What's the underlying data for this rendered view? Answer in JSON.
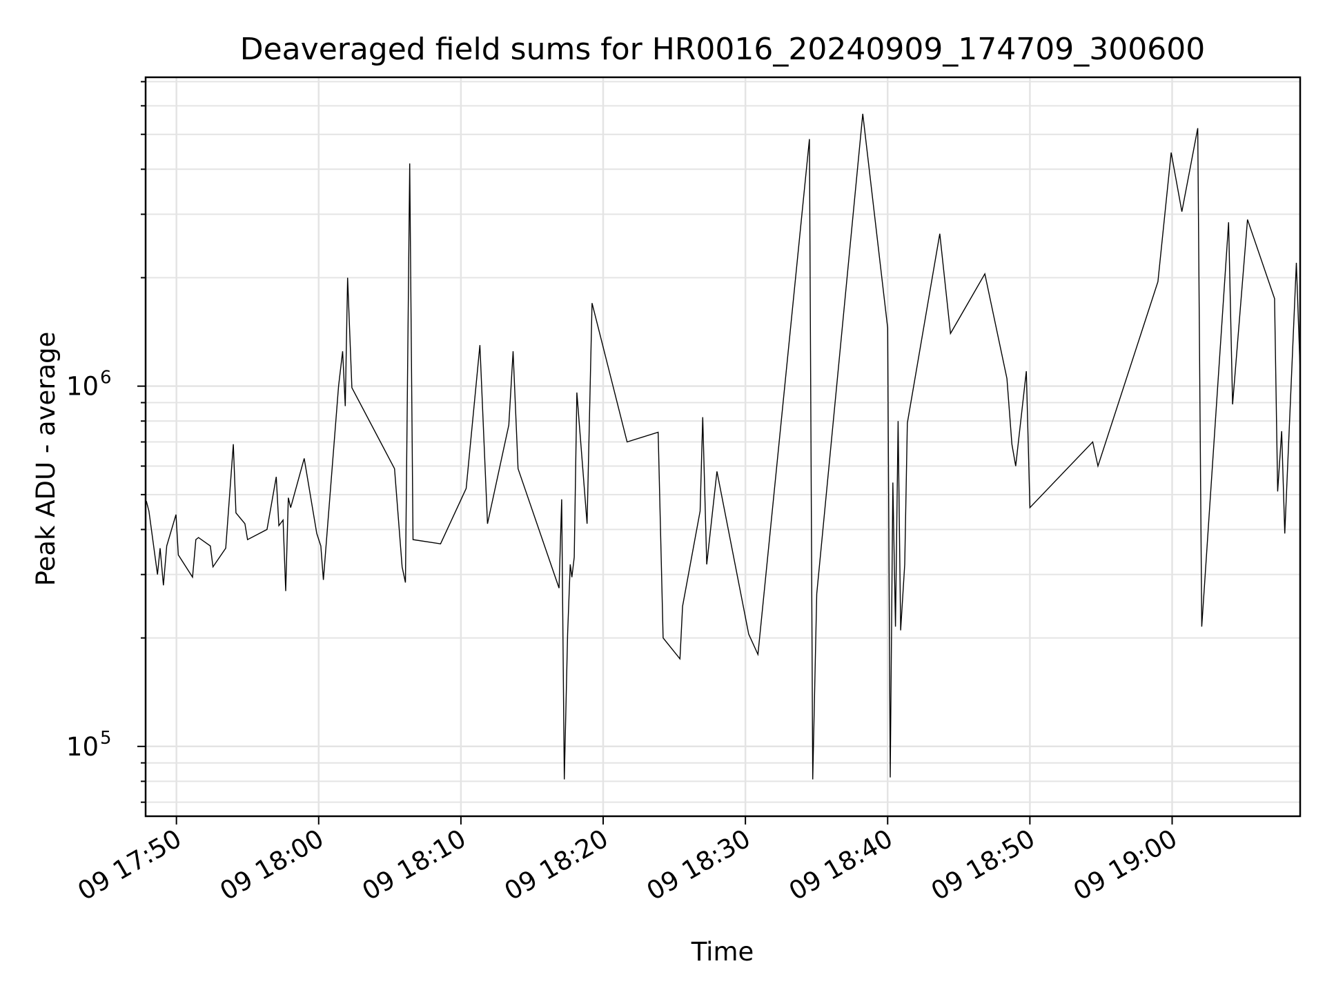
{
  "chart_data": {
    "type": "line",
    "title": "Deaveraged field sums for HR0016_20240909_174709_300600",
    "xlabel": "Time",
    "ylabel": "Peak ADU - average",
    "y_scale": "log",
    "ylim": [
      64000,
      7200000
    ],
    "xlim": [
      "2024-09-09 17:47:50",
      "2024-09-09 19:09:00"
    ],
    "grid": true,
    "x_ticks": [
      {
        "label": "09 17:50",
        "value": "2024-09-09 17:50:00"
      },
      {
        "label": "09 18:00",
        "value": "2024-09-09 18:00:00"
      },
      {
        "label": "09 18:10",
        "value": "2024-09-09 18:10:00"
      },
      {
        "label": "09 18:20",
        "value": "2024-09-09 18:20:00"
      },
      {
        "label": "09 18:30",
        "value": "2024-09-09 18:30:00"
      },
      {
        "label": "09 18:40",
        "value": "2024-09-09 18:40:00"
      },
      {
        "label": "09 18:50",
        "value": "2024-09-09 18:50:00"
      },
      {
        "label": "09 19:00",
        "value": "2024-09-09 19:00:00"
      }
    ],
    "y_ticks": [
      {
        "base": "10",
        "exp": "5",
        "value": 100000
      },
      {
        "base": "10",
        "exp": "6",
        "value": 1000000
      }
    ],
    "series": [
      {
        "color": "#000000",
        "points": [
          [
            "2024-09-09 17:47:53",
            480000
          ],
          [
            "2024-09-09 17:48:04",
            450000
          ],
          [
            "2024-09-09 17:48:40",
            300000
          ],
          [
            "2024-09-09 17:48:51",
            355000
          ],
          [
            "2024-09-09 17:49:05",
            280000
          ],
          [
            "2024-09-09 17:49:19",
            360000
          ],
          [
            "2024-09-09 17:49:58",
            440000
          ],
          [
            "2024-09-09 17:50:08",
            340000
          ],
          [
            "2024-09-09 17:51:08",
            295000
          ],
          [
            "2024-09-09 17:51:22",
            375000
          ],
          [
            "2024-09-09 17:51:33",
            380000
          ],
          [
            "2024-09-09 17:52:23",
            360000
          ],
          [
            "2024-09-09 17:52:34",
            315000
          ],
          [
            "2024-09-09 17:53:28",
            355000
          ],
          [
            "2024-09-09 17:54:00",
            690000
          ],
          [
            "2024-09-09 17:54:11",
            445000
          ],
          [
            "2024-09-09 17:54:49",
            415000
          ],
          [
            "2024-09-09 17:55:00",
            375000
          ],
          [
            "2024-09-09 17:56:22",
            400000
          ],
          [
            "2024-09-09 17:57:01",
            560000
          ],
          [
            "2024-09-09 17:57:12",
            410000
          ],
          [
            "2024-09-09 17:57:30",
            425000
          ],
          [
            "2024-09-09 17:57:41",
            270000
          ],
          [
            "2024-09-09 17:57:52",
            490000
          ],
          [
            "2024-09-09 17:58:02",
            460000
          ],
          [
            "2024-09-09 17:58:59",
            630000
          ],
          [
            "2024-09-09 17:59:52",
            390000
          ],
          [
            "2024-09-09 18:00:09",
            360000
          ],
          [
            "2024-09-09 18:00:20",
            290000
          ],
          [
            "2024-09-09 18:01:24",
            1000000
          ],
          [
            "2024-09-09 18:01:41",
            1250000
          ],
          [
            "2024-09-09 18:01:52",
            880000
          ],
          [
            "2024-09-09 18:02:02",
            2000000
          ],
          [
            "2024-09-09 18:02:20",
            990000
          ],
          [
            "2024-09-09 18:05:20",
            590000
          ],
          [
            "2024-09-09 18:05:52",
            315000
          ],
          [
            "2024-09-09 18:06:06",
            285000
          ],
          [
            "2024-09-09 18:06:24",
            4150000
          ],
          [
            "2024-09-09 18:06:38",
            375000
          ],
          [
            "2024-09-09 18:08:34",
            365000
          ],
          [
            "2024-09-09 18:10:22",
            520000
          ],
          [
            "2024-09-09 18:11:20",
            1300000
          ],
          [
            "2024-09-09 18:11:52",
            415000
          ],
          [
            "2024-09-09 18:13:22",
            780000
          ],
          [
            "2024-09-09 18:13:40",
            1250000
          ],
          [
            "2024-09-09 18:14:01",
            590000
          ],
          [
            "2024-09-09 18:16:54",
            275000
          ],
          [
            "2024-09-09 18:17:05",
            485000
          ],
          [
            "2024-09-09 18:17:16",
            81000
          ],
          [
            "2024-09-09 18:17:30",
            205000
          ],
          [
            "2024-09-09 18:17:41",
            320000
          ],
          [
            "2024-09-09 18:17:48",
            295000
          ],
          [
            "2024-09-09 18:17:58",
            335000
          ],
          [
            "2024-09-09 18:18:09",
            960000
          ],
          [
            "2024-09-09 18:18:52",
            415000
          ],
          [
            "2024-09-09 18:19:13",
            1700000
          ],
          [
            "2024-09-09 18:21:41",
            700000
          ],
          [
            "2024-09-09 18:23:52",
            745000
          ],
          [
            "2024-09-09 18:24:13",
            200000
          ],
          [
            "2024-09-09 18:25:24",
            175000
          ],
          [
            "2024-09-09 18:25:35",
            245000
          ],
          [
            "2024-09-09 18:26:49",
            450000
          ],
          [
            "2024-09-09 18:27:00",
            820000
          ],
          [
            "2024-09-09 18:27:17",
            320000
          ],
          [
            "2024-09-09 18:28:00",
            580000
          ],
          [
            "2024-09-09 18:30:14",
            205000
          ],
          [
            "2024-09-09 18:30:53",
            180000
          ],
          [
            "2024-09-09 18:34:30",
            4850000
          ],
          [
            "2024-09-09 18:34:44",
            81000
          ],
          [
            "2024-09-09 18:35:01",
            265000
          ],
          [
            "2024-09-09 18:38:15",
            5700000
          ],
          [
            "2024-09-09 18:40:00",
            1450000
          ],
          [
            "2024-09-09 18:40:11",
            82000
          ],
          [
            "2024-09-09 18:40:22",
            540000
          ],
          [
            "2024-09-09 18:40:33",
            215000
          ],
          [
            "2024-09-09 18:40:44",
            800000
          ],
          [
            "2024-09-09 18:40:55",
            210000
          ],
          [
            "2024-09-09 18:41:12",
            320000
          ],
          [
            "2024-09-09 18:41:23",
            790000
          ],
          [
            "2024-09-09 18:43:40",
            2650000
          ],
          [
            "2024-09-09 18:44:25",
            1400000
          ],
          [
            "2024-09-09 18:46:50",
            2050000
          ],
          [
            "2024-09-09 18:48:23",
            1050000
          ],
          [
            "2024-09-09 18:48:44",
            690000
          ],
          [
            "2024-09-09 18:49:00",
            600000
          ],
          [
            "2024-09-09 18:49:45",
            1100000
          ],
          [
            "2024-09-09 18:50:00",
            460000
          ],
          [
            "2024-09-09 18:54:25",
            700000
          ],
          [
            "2024-09-09 18:54:47",
            600000
          ],
          [
            "2024-09-09 18:59:00",
            1950000
          ],
          [
            "2024-09-09 18:59:56",
            4450000
          ],
          [
            "2024-09-09 19:00:41",
            3050000
          ],
          [
            "2024-09-09 19:01:48",
            5200000
          ],
          [
            "2024-09-09 19:02:05",
            215000
          ],
          [
            "2024-09-09 19:03:58",
            2850000
          ],
          [
            "2024-09-09 19:04:15",
            890000
          ],
          [
            "2024-09-09 19:05:18",
            2900000
          ],
          [
            "2024-09-09 19:07:12",
            1750000
          ],
          [
            "2024-09-09 19:07:25",
            510000
          ],
          [
            "2024-09-09 19:07:42",
            750000
          ],
          [
            "2024-09-09 19:07:55",
            390000
          ],
          [
            "2024-09-09 19:08:44",
            2200000
          ],
          [
            "2024-09-09 19:09:00",
            1100000
          ]
        ]
      }
    ]
  }
}
